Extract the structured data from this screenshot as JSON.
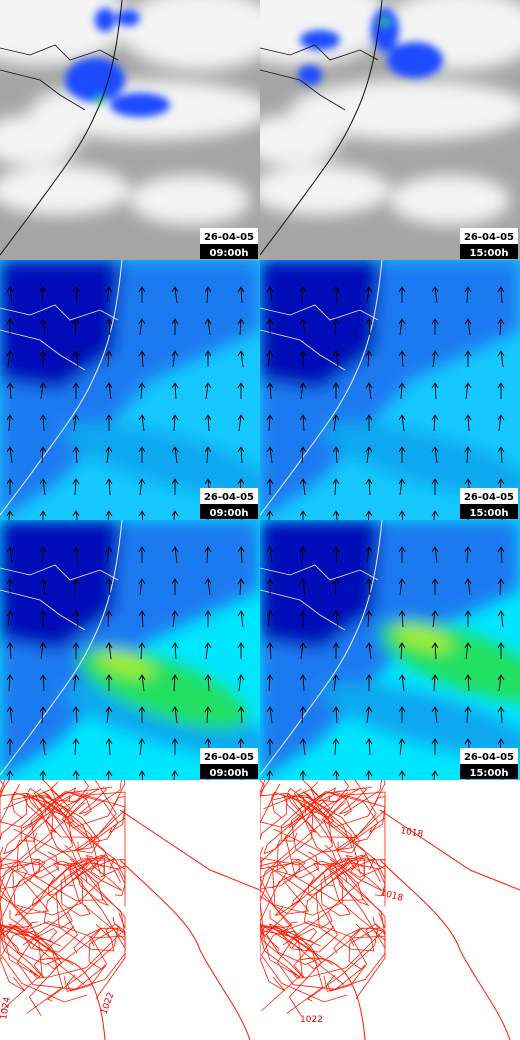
{
  "panels": [
    {
      "date": "26-04-05",
      "time": "09:00h"
    },
    {
      "date": "26-04-05",
      "time": "15:00h"
    },
    {
      "date": "26-04-05",
      "time": "09:00h"
    },
    {
      "date": "26-04-05",
      "time": "15:00h"
    },
    {
      "date": "26-04-05",
      "time": "09:00h"
    },
    {
      "date": "26-04-05",
      "time": "15:00h"
    }
  ],
  "contour_labels": {
    "left": [
      "1022",
      "1024"
    ],
    "right": [
      "1018",
      "1018",
      "1022"
    ]
  }
}
